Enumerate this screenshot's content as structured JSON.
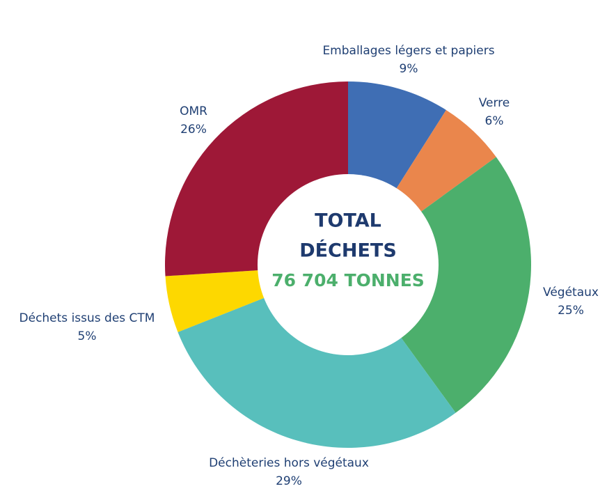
{
  "chart_data": {
    "type": "donut",
    "categories": [
      "Emballages légers et papiers",
      "Verre",
      "Végétaux",
      "Déchèteries hors végétaux",
      "Déchets issus des CTM",
      "OMR"
    ],
    "values": [
      9,
      6,
      25,
      29,
      5,
      26
    ],
    "value_labels": [
      "9%",
      "6%",
      "25%",
      "29%",
      "5%",
      "26%"
    ],
    "colors": [
      "#3f6eb4",
      "#ea864c",
      "#4caf6c",
      "#58bfbc",
      "#fdd800",
      "#9e1837"
    ],
    "annotations": [
      "TOTAL",
      "DÉCHETS",
      "76 704 TONNES"
    ]
  }
}
